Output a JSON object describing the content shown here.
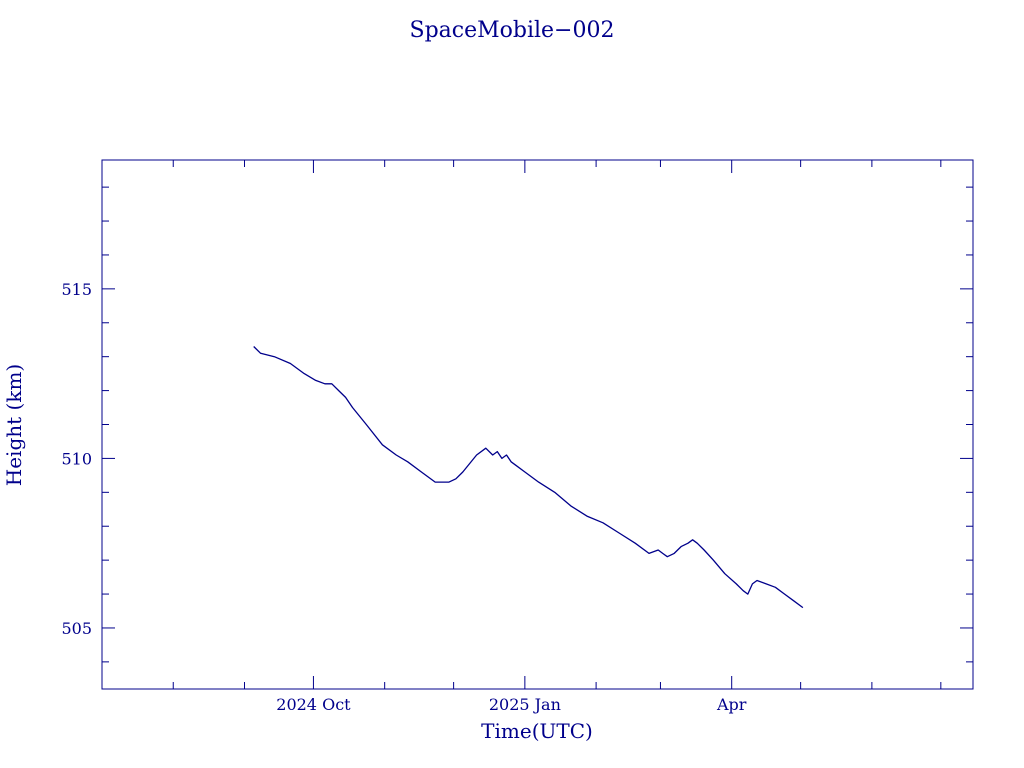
{
  "chart_data": {
    "type": "line",
    "title": "SpaceMobile−002",
    "xlabel": "Time(UTC)",
    "ylabel": "Height (km)",
    "color": "#00008b",
    "x_tick_labels": [
      {
        "label": "2024 Oct",
        "date": "2024-10-01"
      },
      {
        "label": "2025 Jan",
        "date": "2025-01-01"
      },
      {
        "label": "Apr",
        "date": "2025-04-01"
      }
    ],
    "y_ticks": [
      505,
      510,
      515
    ],
    "xlim": [
      "2024-07-01",
      "2025-07-15"
    ],
    "ylim": [
      503.2,
      518.8
    ],
    "grid": false,
    "series": [
      {
        "x": [
          "2024-09-05",
          "2024-09-08",
          "2024-09-14",
          "2024-09-21",
          "2024-09-27",
          "2024-10-02",
          "2024-10-06",
          "2024-10-09",
          "2024-10-12",
          "2024-10-15",
          "2024-10-18",
          "2024-10-24",
          "2024-10-31",
          "2024-11-06",
          "2024-11-11",
          "2024-11-17",
          "2024-11-23",
          "2024-11-29",
          "2024-12-02",
          "2024-12-05",
          "2024-12-11",
          "2024-12-15",
          "2024-12-18",
          "2024-12-20",
          "2024-12-22",
          "2024-12-24",
          "2024-12-26",
          "2024-12-28",
          "2025-01-01",
          "2025-01-07",
          "2025-01-14",
          "2025-01-21",
          "2025-01-28",
          "2025-02-04",
          "2025-02-11",
          "2025-02-18",
          "2025-02-24",
          "2025-02-28",
          "2025-03-02",
          "2025-03-04",
          "2025-03-07",
          "2025-03-10",
          "2025-03-13",
          "2025-03-15",
          "2025-03-17",
          "2025-03-20",
          "2025-03-24",
          "2025-03-29",
          "2025-04-03",
          "2025-04-06",
          "2025-04-08",
          "2025-04-10",
          "2025-04-12",
          "2025-04-16",
          "2025-04-20",
          "2025-04-24",
          "2025-04-28",
          "2025-05-02"
        ],
        "y": [
          513.3,
          513.1,
          513.0,
          512.8,
          512.5,
          512.3,
          512.2,
          512.2,
          512.0,
          511.8,
          511.5,
          511.0,
          510.4,
          510.1,
          509.9,
          509.6,
          509.3,
          509.3,
          509.4,
          509.6,
          510.1,
          510.3,
          510.1,
          510.2,
          510.0,
          510.1,
          509.9,
          509.8,
          509.6,
          509.3,
          509.0,
          508.6,
          508.3,
          508.1,
          507.8,
          507.5,
          507.2,
          507.3,
          507.2,
          507.1,
          507.2,
          507.4,
          507.5,
          507.6,
          507.5,
          507.3,
          507.0,
          506.6,
          506.3,
          506.1,
          506.0,
          506.3,
          506.4,
          506.3,
          506.2,
          506.0,
          505.8,
          505.6
        ]
      }
    ]
  }
}
